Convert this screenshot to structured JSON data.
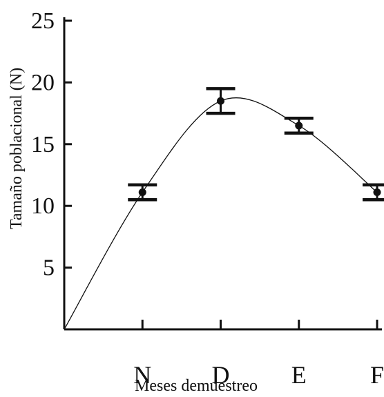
{
  "chart_data": {
    "type": "line",
    "xlabel": "Meses demuestreo",
    "ylabel": "Tamaño poblacional (N)",
    "categories": [
      "N",
      "D",
      "E",
      "F"
    ],
    "y_ticks": [
      5,
      10,
      15,
      20,
      25
    ],
    "ylim": [
      0,
      25
    ],
    "grid": false,
    "legend": "none",
    "series": [
      {
        "values": [
          11.1,
          18.5,
          16.5,
          11.1
        ],
        "error_low": [
          10.5,
          17.5,
          15.9,
          10.5
        ],
        "error_high": [
          11.7,
          19.5,
          17.1,
          11.7
        ]
      }
    ],
    "curve": {
      "smooth": true,
      "starts_at_origin": true,
      "points": [
        [
          0,
          0
        ],
        [
          1,
          11.1
        ],
        [
          2,
          18.5
        ],
        [
          3,
          16.5
        ],
        [
          4,
          11.1
        ]
      ]
    },
    "colors": {
      "ink": "#111111"
    }
  }
}
